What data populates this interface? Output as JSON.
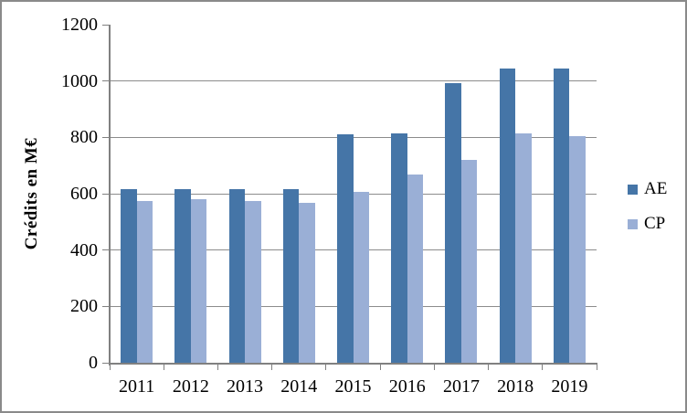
{
  "chart_data": {
    "type": "bar",
    "title": "",
    "ylabel": "Crédits en M€",
    "xlabel": "",
    "ylim": [
      0,
      1200
    ],
    "yticks": [
      0,
      200,
      400,
      600,
      800,
      1000,
      1200
    ],
    "gridlines": [
      200,
      400,
      600,
      800,
      1000
    ],
    "grid": true,
    "legend_position": "right",
    "categories": [
      "2011",
      "2012",
      "2013",
      "2014",
      "2015",
      "2016",
      "2017",
      "2018",
      "2019"
    ],
    "series": [
      {
        "name": "AE",
        "color": "#4575a7",
        "values": [
          615,
          615,
          615,
          615,
          812,
          813,
          993,
          1045,
          1045
        ]
      },
      {
        "name": "CP",
        "color": "#9aafd6",
        "values": [
          574,
          579,
          575,
          566,
          606,
          667,
          719,
          813,
          803
        ]
      }
    ]
  },
  "colors": {
    "axis": "#808080",
    "gridline": "#8c8c8c",
    "frame_border": "#8a8a8a",
    "text": "#000000"
  }
}
